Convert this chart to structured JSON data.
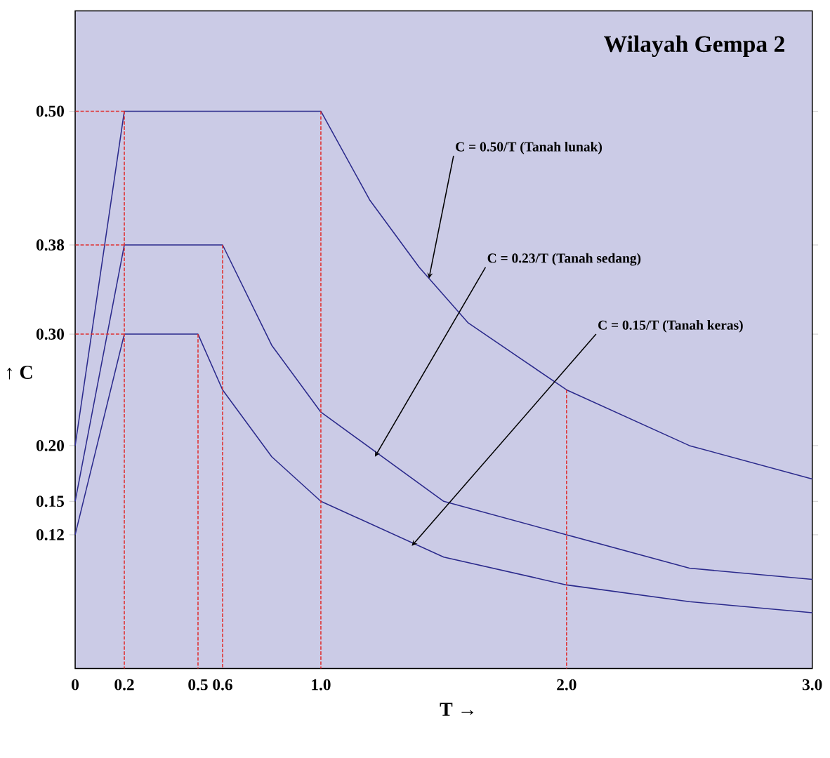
{
  "chart_data": {
    "type": "line",
    "title": "Wilayah Gempa 2",
    "xlabel": "T →",
    "ylabel": "↑ C",
    "xlim": [
      0,
      3
    ],
    "ylim": [
      0,
      0.59
    ],
    "xticks": [
      0,
      {
        "value": 0.2,
        "label": "0.2"
      },
      {
        "value": 0.5,
        "label": "0.5"
      },
      {
        "value": 0.6,
        "label": "0.6"
      },
      {
        "value": 1,
        "label": "1.0"
      },
      {
        "value": 2,
        "label": "2.0"
      },
      {
        "value": 3,
        "label": "3.0"
      }
    ],
    "yticks": [
      {
        "value": 0.12,
        "label": "0.12"
      },
      {
        "value": 0.15,
        "label": "0.15"
      },
      {
        "value": 0.2,
        "label": "0.20"
      },
      {
        "value": 0.3,
        "label": "0.30"
      },
      {
        "value": 0.38,
        "label": "0.38"
      },
      {
        "value": 0.5,
        "label": "0.50"
      }
    ],
    "grid": false,
    "series": [
      {
        "color": "#2b2a8c",
        "line_style": "solid",
        "x": [
          0,
          0.2,
          1.0,
          1.2,
          1.4,
          1.6,
          2.0,
          2.5,
          3.0
        ],
        "values": [
          0.2,
          0.5,
          0.5,
          0.42,
          0.36,
          0.31,
          0.25,
          0.2,
          0.17
        ]
      },
      {
        "color": "#2b2a8c",
        "line_style": "solid",
        "x": [
          0,
          0.2,
          0.6,
          0.8,
          1.0,
          1.5,
          2.0,
          2.5,
          3.0
        ],
        "values": [
          0.15,
          0.38,
          0.38,
          0.29,
          0.23,
          0.15,
          0.12,
          0.09,
          0.08
        ]
      },
      {
        "color": "#2b2a8c",
        "line_style": "solid",
        "x": [
          0,
          0.2,
          0.5,
          0.6,
          0.8,
          1.0,
          1.5,
          2.0,
          2.5,
          3.0
        ],
        "values": [
          0.12,
          0.3,
          0.3,
          0.25,
          0.19,
          0.15,
          0.1,
          0.075,
          0.06,
          0.05
        ]
      },
      {
        "type": "line",
        "color": "#e03030",
        "line_style": "dashed",
        "x": [
          0,
          0.2
        ],
        "values": [
          0.5,
          0.5
        ]
      },
      {
        "type": "line",
        "color": "#e03030",
        "line_style": "dashed",
        "x": [
          0,
          0.2
        ],
        "values": [
          0.38,
          0.38
        ]
      },
      {
        "type": "line",
        "color": "#e03030",
        "line_style": "dashed",
        "x": [
          0,
          0.2
        ],
        "values": [
          0.3,
          0.3
        ]
      },
      {
        "type": "line",
        "color": "#e03030",
        "line_style": "dashed",
        "x": [
          0.2,
          0.2
        ],
        "values": [
          0,
          0.5
        ]
      },
      {
        "type": "line",
        "color": "#e03030",
        "line_style": "dashed",
        "x": [
          0.5,
          0.5
        ],
        "values": [
          0,
          0.3
        ]
      },
      {
        "type": "line",
        "color": "#e03030",
        "line_style": "dashed",
        "x": [
          0.6,
          0.6
        ],
        "values": [
          0,
          0.38
        ]
      },
      {
        "type": "line",
        "color": "#e03030",
        "line_style": "dashed",
        "x": [
          1.0,
          1.0
        ],
        "values": [
          0,
          0.5
        ]
      },
      {
        "type": "line",
        "color": "#e03030",
        "line_style": "dashed",
        "x": [
          2.0,
          2.0
        ],
        "values": [
          0,
          0.25
        ]
      }
    ],
    "annotations": [
      {
        "text": "C = 0.50/T (Tanah lunak)",
        "x": 1.44,
        "y": 0.35
      },
      {
        "text": "C = 0.23/T (Tanah sedang)",
        "x": 1.22,
        "y": 0.19
      },
      {
        "text": "C = 0.15/T (Tanah keras)",
        "x": 1.37,
        "y": 0.11
      }
    ]
  }
}
